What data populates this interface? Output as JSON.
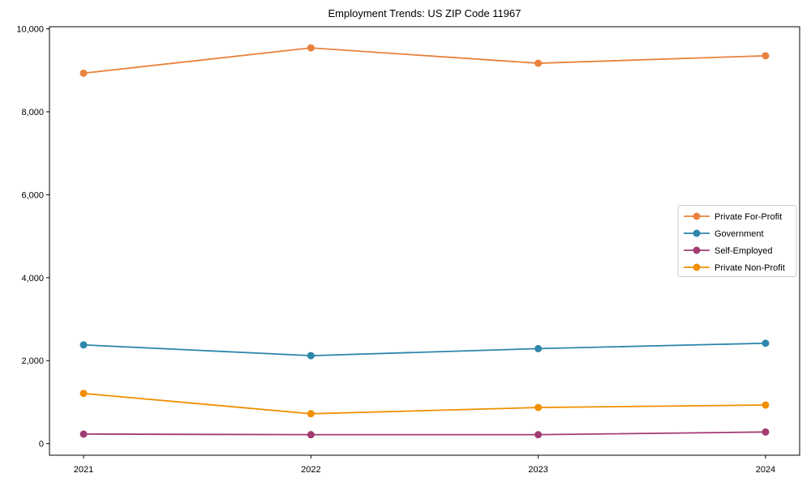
{
  "chart_data": {
    "type": "line",
    "title": "Employment Trends: US ZIP Code 11967",
    "x": [
      2021,
      2022,
      2023,
      2024
    ],
    "x_tick_labels": [
      "2021",
      "2022",
      "2023",
      "2024"
    ],
    "y_tick_values": [
      0,
      2000,
      4000,
      6000,
      8000,
      10000
    ],
    "y_tick_labels": [
      "0",
      "2,000",
      "4,000",
      "6,000",
      "8,000",
      "10,000"
    ],
    "xlim": [
      2020.85,
      2024.15
    ],
    "ylim": [
      -280,
      10050
    ],
    "grid": false,
    "legend_position": "center right",
    "series": [
      {
        "name": "Private For-Profit",
        "color": "#E8823D",
        "values": [
          8930,
          9540,
          9170,
          9350
        ]
      },
      {
        "name": "Government",
        "color": "#2E86AB",
        "values": [
          2380,
          2120,
          2290,
          2420
        ]
      },
      {
        "name": "Self-Employed",
        "color": "#A23B72",
        "values": [
          230,
          215,
          215,
          280
        ]
      },
      {
        "name": "Private Non-Profit",
        "color": "#F18F01",
        "values": [
          1210,
          720,
          870,
          930
        ]
      }
    ],
    "colors": {
      "axis": "#000000",
      "text": "#000000",
      "legend_border": "#cccccc",
      "background": "#ffffff"
    }
  }
}
